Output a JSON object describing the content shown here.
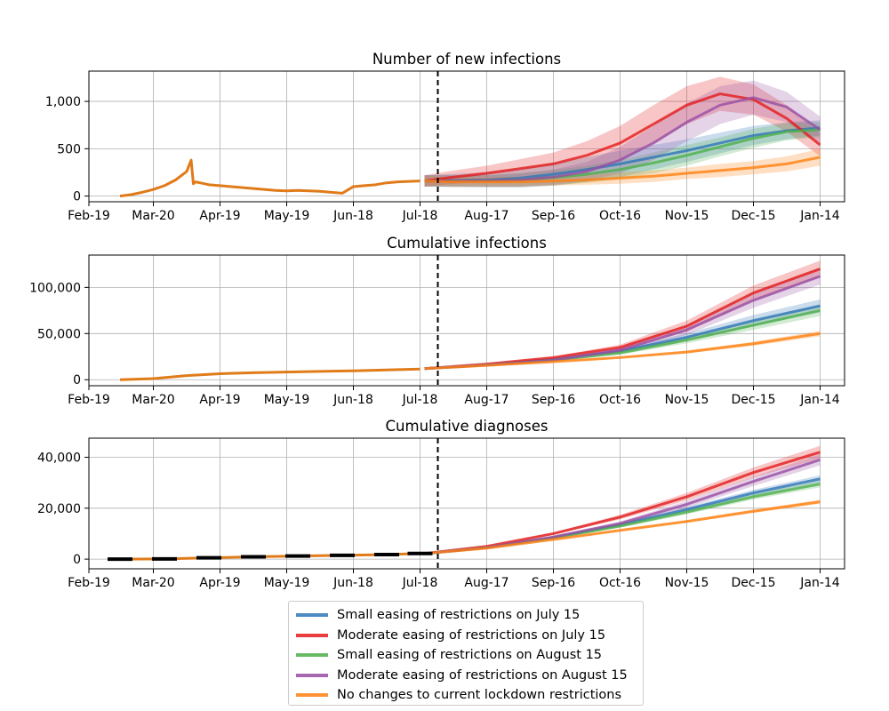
{
  "chart_data": [
    {
      "type": "line",
      "title": "Number of new infections",
      "x_tick_labels": [
        "Feb-19",
        "Mar-20",
        "Apr-19",
        "May-19",
        "Jun-18",
        "Jul-18",
        "Aug-17",
        "Sep-16",
        "Oct-16",
        "Nov-15",
        "Dec-15",
        "Jan-14"
      ],
      "y_tick_labels": [
        "0",
        "500",
        "1,000"
      ],
      "ylim": [
        -60,
        1320
      ],
      "y_ticks": [
        0,
        500,
        1000
      ],
      "grid": true,
      "vline_label_x": "Jun-26",
      "history": {
        "x": [
          0,
          5,
          10,
          15,
          20,
          25,
          30,
          32,
          33,
          34,
          36,
          40,
          50,
          60,
          70,
          75,
          80,
          85,
          90,
          95,
          100,
          105,
          110,
          115,
          120,
          125,
          130,
          135
        ],
        "y": [
          0,
          15,
          40,
          70,
          110,
          170,
          260,
          380,
          130,
          150,
          140,
          120,
          100,
          80,
          60,
          55,
          60,
          55,
          50,
          40,
          30,
          100,
          110,
          120,
          140,
          150,
          155,
          160
        ]
      },
      "series": [
        {
          "name": "Small easing of restrictions on July 15",
          "color": "#2e75b6",
          "x": [
            137,
            150,
            165,
            180,
            195,
            210,
            225,
            240,
            255,
            270,
            285,
            300,
            315
          ],
          "y": [
            160,
            165,
            170,
            190,
            230,
            280,
            340,
            410,
            480,
            560,
            640,
            690,
            720
          ],
          "band": [
            60,
            70,
            80,
            100,
            120,
            130,
            140,
            130,
            120,
            110,
            100,
            90,
            80
          ]
        },
        {
          "name": "Moderate easing of restrictions on July 15",
          "color": "#e41a1c",
          "x": [
            137,
            150,
            165,
            180,
            195,
            210,
            225,
            240,
            255,
            270,
            285,
            300,
            315
          ],
          "y": [
            160,
            200,
            240,
            290,
            340,
            430,
            560,
            760,
            960,
            1080,
            1020,
            820,
            540
          ],
          "band": [
            60,
            70,
            80,
            100,
            120,
            150,
            180,
            200,
            200,
            180,
            160,
            140,
            120
          ]
        },
        {
          "name": "Small easing of restrictions on August 15",
          "color": "#4daf4a",
          "x": [
            137,
            150,
            165,
            180,
            195,
            210,
            225,
            240,
            255,
            270,
            285,
            300,
            315
          ],
          "y": [
            160,
            160,
            160,
            170,
            195,
            230,
            280,
            350,
            430,
            520,
            610,
            680,
            700
          ],
          "band": [
            60,
            60,
            60,
            70,
            80,
            90,
            100,
            110,
            110,
            100,
            100,
            90,
            80
          ]
        },
        {
          "name": "Moderate easing of restrictions on August 15",
          "color": "#984ea3",
          "x": [
            137,
            150,
            165,
            180,
            195,
            210,
            225,
            240,
            255,
            270,
            285,
            300,
            315
          ],
          "y": [
            160,
            160,
            160,
            170,
            200,
            260,
            380,
            560,
            780,
            960,
            1040,
            940,
            700
          ],
          "band": [
            60,
            60,
            60,
            70,
            80,
            100,
            140,
            180,
            200,
            200,
            180,
            160,
            140
          ]
        },
        {
          "name": "No changes to current lockdown restrictions",
          "color": "#ff7f0e",
          "x": [
            137,
            150,
            165,
            180,
            195,
            210,
            225,
            240,
            255,
            270,
            285,
            300,
            315
          ],
          "y": [
            160,
            150,
            150,
            150,
            160,
            170,
            190,
            210,
            240,
            270,
            300,
            340,
            410
          ],
          "band": [
            50,
            50,
            50,
            50,
            50,
            50,
            60,
            60,
            60,
            70,
            70,
            80,
            90
          ]
        }
      ]
    },
    {
      "type": "line",
      "title": "Cumulative infections",
      "x_tick_labels": [
        "Feb-19",
        "Mar-20",
        "Apr-19",
        "May-19",
        "Jun-18",
        "Jul-18",
        "Aug-17",
        "Sep-16",
        "Oct-16",
        "Nov-15",
        "Dec-15",
        "Jan-14"
      ],
      "y_tick_labels": [
        "0",
        "50,000",
        "100,000"
      ],
      "ylim": [
        -6500,
        135000
      ],
      "y_ticks": [
        0,
        50000,
        100000
      ],
      "grid": true,
      "history": {
        "x": [
          0,
          15,
          30,
          45,
          60,
          75,
          90,
          105,
          120,
          135
        ],
        "y": [
          0,
          1200,
          4500,
          6500,
          7600,
          8300,
          9000,
          9600,
          10600,
          11500
        ]
      },
      "series": [
        {
          "name": "Small easing of restrictions on July 15",
          "color": "#2e75b6",
          "x": [
            137,
            165,
            195,
            225,
            255,
            285,
            315
          ],
          "y": [
            12000,
            16000,
            22000,
            31000,
            46000,
            64000,
            80000
          ],
          "band": [
            0,
            200,
            800,
            2000,
            4000,
            6000,
            7000
          ]
        },
        {
          "name": "Moderate easing of restrictions on July 15",
          "color": "#e41a1c",
          "x": [
            137,
            165,
            195,
            225,
            255,
            285,
            315
          ],
          "y": [
            12000,
            17000,
            24000,
            35000,
            58000,
            94000,
            120000
          ],
          "band": [
            0,
            300,
            1000,
            3000,
            6000,
            8000,
            9000
          ]
        },
        {
          "name": "Small easing of restrictions on August 15",
          "color": "#4daf4a",
          "x": [
            137,
            165,
            195,
            225,
            255,
            285,
            315
          ],
          "y": [
            12000,
            16000,
            21000,
            29000,
            43000,
            59000,
            75000
          ],
          "band": [
            0,
            200,
            700,
            1800,
            3500,
            5000,
            6000
          ]
        },
        {
          "name": "Moderate easing of restrictions on August 15",
          "color": "#984ea3",
          "x": [
            137,
            165,
            195,
            225,
            255,
            285,
            315
          ],
          "y": [
            12000,
            16000,
            21000,
            32000,
            54000,
            86000,
            112000
          ],
          "band": [
            0,
            200,
            800,
            2500,
            5500,
            8000,
            9000
          ]
        },
        {
          "name": "No changes to current lockdown restrictions",
          "color": "#ff7f0e",
          "x": [
            137,
            165,
            195,
            225,
            255,
            285,
            315
          ],
          "y": [
            12000,
            15500,
            19500,
            24000,
            30000,
            39000,
            50000
          ],
          "band": [
            0,
            150,
            500,
            900,
            1500,
            2200,
            3000
          ]
        }
      ]
    },
    {
      "type": "line",
      "title": "Cumulative diagnoses",
      "x_tick_labels": [
        "Feb-19",
        "Mar-20",
        "Apr-19",
        "May-19",
        "Jun-18",
        "Jul-18",
        "Aug-17",
        "Sep-16",
        "Oct-16",
        "Nov-15",
        "Dec-15",
        "Jan-14"
      ],
      "y_tick_labels": [
        "0",
        "20,000",
        "40,000"
      ],
      "ylim": [
        -3800,
        47500
      ],
      "y_ticks": [
        0,
        20000,
        40000
      ],
      "grid": true,
      "history": {
        "x": [
          0,
          20,
          40,
          60,
          80,
          100,
          120,
          135
        ],
        "y": [
          0,
          100,
          500,
          900,
          1200,
          1500,
          1800,
          2200
        ]
      },
      "series": [
        {
          "name": "Small easing of restrictions on July 15",
          "color": "#2e75b6",
          "x": [
            137,
            165,
            195,
            225,
            255,
            285,
            315
          ],
          "y": [
            2200,
            4500,
            8500,
            13500,
            19500,
            26000,
            31500
          ],
          "band": [
            0,
            100,
            300,
            600,
            900,
            1200,
            1400
          ]
        },
        {
          "name": "Moderate easing of restrictions on July 15",
          "color": "#e41a1c",
          "x": [
            137,
            165,
            195,
            225,
            255,
            285,
            315
          ],
          "y": [
            2200,
            5000,
            10000,
            16500,
            24500,
            34000,
            42000
          ],
          "band": [
            0,
            150,
            400,
            900,
            1500,
            2000,
            2500
          ]
        },
        {
          "name": "Small easing of restrictions on August 15",
          "color": "#4daf4a",
          "x": [
            137,
            165,
            195,
            225,
            255,
            285,
            315
          ],
          "y": [
            2200,
            4500,
            8300,
            13000,
            18500,
            24500,
            29500
          ],
          "band": [
            0,
            100,
            300,
            600,
            900,
            1100,
            1300
          ]
        },
        {
          "name": "Moderate easing of restrictions on August 15",
          "color": "#984ea3",
          "x": [
            137,
            165,
            195,
            225,
            255,
            285,
            315
          ],
          "y": [
            2200,
            4500,
            8700,
            14000,
            21500,
            30500,
            39000
          ],
          "band": [
            0,
            120,
            350,
            800,
            1300,
            1800,
            2200
          ]
        },
        {
          "name": "No changes to current lockdown restrictions",
          "color": "#ff7f0e",
          "x": [
            137,
            165,
            195,
            225,
            255,
            285,
            315
          ],
          "y": [
            2200,
            4300,
            7700,
            11300,
            14800,
            18800,
            22500
          ],
          "band": [
            0,
            80,
            200,
            350,
            500,
            650,
            800
          ]
        }
      ]
    }
  ],
  "legend": {
    "items": [
      {
        "label": "Small easing of restrictions on July 15",
        "color": "#2e75b6"
      },
      {
        "label": "Moderate easing of restrictions on July 15",
        "color": "#e41a1c"
      },
      {
        "label": "Small easing of restrictions on August 15",
        "color": "#4daf4a"
      },
      {
        "label": "Moderate easing of restrictions on August 15",
        "color": "#984ea3"
      },
      {
        "label": "No changes to current lockdown restrictions",
        "color": "#ff7f0e"
      }
    ]
  },
  "colors": {
    "history": "#e07b1a",
    "vline": "#000000",
    "grid": "#b0b0b0"
  }
}
